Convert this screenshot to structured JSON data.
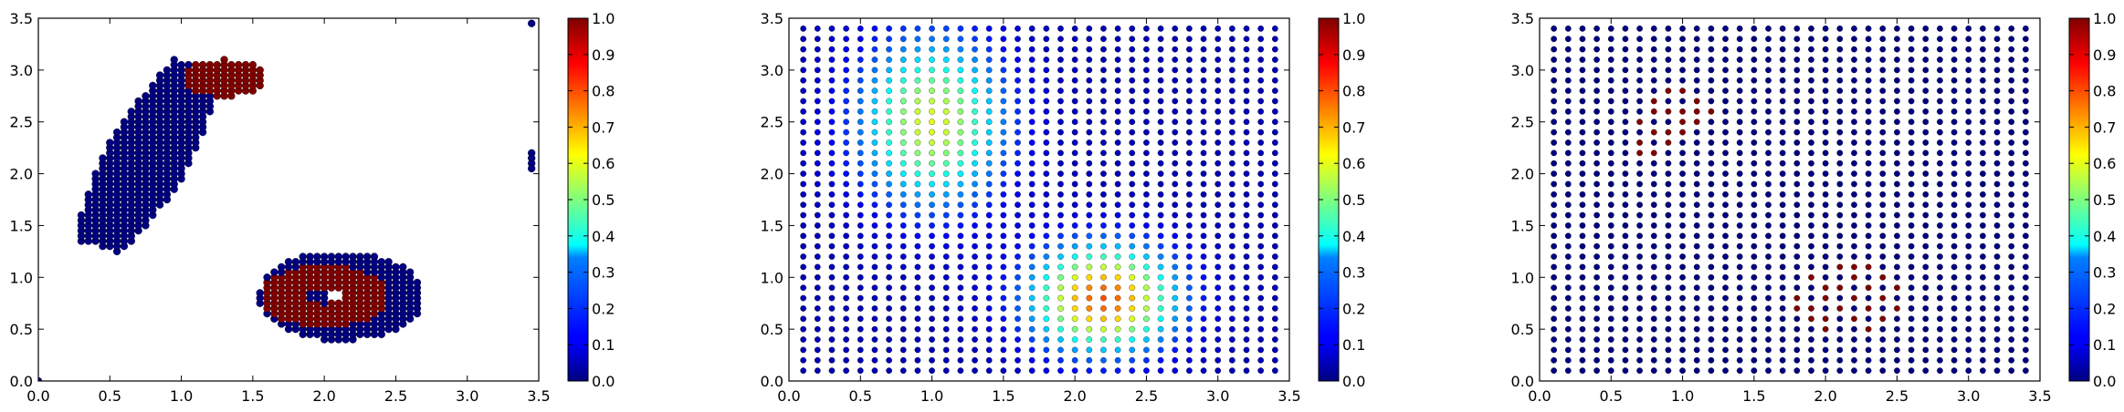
{
  "chart_data": [
    {
      "type": "scatter",
      "title": "",
      "xlabel": "",
      "ylabel": "",
      "xlim": [
        0.0,
        3.5
      ],
      "ylim": [
        0.0,
        3.5
      ],
      "xticks": [
        "0.0",
        "0.5",
        "1.0",
        "1.5",
        "2.0",
        "2.5",
        "3.0",
        "3.5"
      ],
      "yticks": [
        "0.0",
        "0.5",
        "1.0",
        "1.5",
        "2.0",
        "2.5",
        "3.0",
        "3.5"
      ],
      "colormap": "jet",
      "colorbar": {
        "range": [
          0.0,
          1.0
        ],
        "ticks": [
          "0.0",
          "0.1",
          "0.2",
          "0.3",
          "0.4",
          "0.5",
          "0.6",
          "0.7",
          "0.8",
          "0.9",
          "1.0"
        ]
      },
      "grid": false,
      "point_spacing": 0.05,
      "description_of_points": "dense point clouds: elongated diagonal blob near x 0.4-1.5, y 1.2-3.1 (mostly value 0 with value-1 cap at upper right); ring shape near x 1.5-2.7, y 0.35-1.3 (inner value 1, outer value 0); outliers at x 3.45",
      "regions": [
        {
          "value": 0,
          "shape": "band",
          "x0": 0.42,
          "y0": 1.3,
          "x1": 1.12,
          "y1": 3.05,
          "halfwidth": 0.24
        },
        {
          "value": 1,
          "shape": "ellipse",
          "cx": 1.3,
          "cy": 2.92,
          "rx": 0.3,
          "ry": 0.18
        },
        {
          "value": 0,
          "shape": "ring",
          "cx": 2.12,
          "cy": 0.82,
          "rx": 0.58,
          "ry": 0.43,
          "inner_rx": 0.12,
          "inner_ry": 0.07
        },
        {
          "value": 1,
          "shape": "ring",
          "cx": 2.0,
          "cy": 0.82,
          "rx": 0.45,
          "ry": 0.3,
          "inner_rx": 0.12,
          "inner_ry": 0.07
        }
      ],
      "points": [
        {
          "x": 3.45,
          "y": 3.45,
          "value": 0
        },
        {
          "x": 3.45,
          "y": 2.2,
          "value": 0
        },
        {
          "x": 3.45,
          "y": 2.15,
          "value": 0
        },
        {
          "x": 3.45,
          "y": 2.1,
          "value": 0
        },
        {
          "x": 3.45,
          "y": 2.05,
          "value": 0
        },
        {
          "x": 0.0,
          "y": 0.0,
          "value": 0
        }
      ]
    },
    {
      "type": "scatter",
      "title": "",
      "xlabel": "",
      "ylabel": "",
      "xlim": [
        0.0,
        3.5
      ],
      "ylim": [
        0.0,
        3.5
      ],
      "xticks": [
        "0.0",
        "0.5",
        "1.0",
        "1.5",
        "2.0",
        "2.5",
        "3.0",
        "3.5"
      ],
      "yticks": [
        "0.0",
        "0.5",
        "1.0",
        "1.5",
        "2.0",
        "2.5",
        "3.0",
        "3.5"
      ],
      "colormap": "jet",
      "colorbar": {
        "range": [
          0.0,
          1.0
        ],
        "ticks": [
          "0.0",
          "0.1",
          "0.2",
          "0.3",
          "0.4",
          "0.5",
          "0.6",
          "0.7",
          "0.8",
          "0.9",
          "1.0"
        ]
      },
      "grid": false,
      "grid_points": {
        "x_start": 0.1,
        "x_end": 3.4,
        "x_step": 0.1,
        "y_start": 0.1,
        "y_end": 3.4,
        "y_step": 0.1
      },
      "field": [
        {
          "cx": 1.0,
          "cy": 2.5,
          "sx": 0.35,
          "sy": 0.55,
          "amplitude": 0.55
        },
        {
          "cx": 2.2,
          "cy": 0.8,
          "sx": 0.35,
          "sy": 0.35,
          "amplitude": 0.75
        }
      ],
      "base_value": 0.05
    },
    {
      "type": "scatter",
      "title": "",
      "xlabel": "",
      "ylabel": "",
      "xlim": [
        0.0,
        3.5
      ],
      "ylim": [
        0.0,
        3.5
      ],
      "xticks": [
        "0.0",
        "0.5",
        "1.0",
        "1.5",
        "2.0",
        "2.5",
        "3.0",
        "3.5"
      ],
      "yticks": [
        "0.0",
        "0.5",
        "1.0",
        "1.5",
        "2.0",
        "2.5",
        "3.0",
        "3.5"
      ],
      "colormap": "jet",
      "colorbar": {
        "range": [
          0.0,
          1.0
        ],
        "ticks": [
          "0.0",
          "0.1",
          "0.2",
          "0.3",
          "0.4",
          "0.5",
          "0.6",
          "0.7",
          "0.8",
          "0.9",
          "1.0"
        ]
      },
      "grid": false,
      "grid_points": {
        "x_start": 0.1,
        "x_end": 3.4,
        "x_step": 0.1,
        "y_start": 0.1,
        "y_end": 3.4,
        "y_step": 0.1
      },
      "base_value": 0.0,
      "high_points": [
        {
          "x": 0.9,
          "y": 2.8
        },
        {
          "x": 1.0,
          "y": 2.8
        },
        {
          "x": 0.8,
          "y": 2.7
        },
        {
          "x": 1.1,
          "y": 2.7
        },
        {
          "x": 0.8,
          "y": 2.6
        },
        {
          "x": 0.9,
          "y": 2.6
        },
        {
          "x": 1.0,
          "y": 2.6
        },
        {
          "x": 1.1,
          "y": 2.6
        },
        {
          "x": 1.2,
          "y": 2.6
        },
        {
          "x": 0.7,
          "y": 2.5
        },
        {
          "x": 1.0,
          "y": 2.5
        },
        {
          "x": 1.1,
          "y": 2.5
        },
        {
          "x": 0.8,
          "y": 2.4
        },
        {
          "x": 0.9,
          "y": 2.4
        },
        {
          "x": 1.0,
          "y": 2.4
        },
        {
          "x": 0.7,
          "y": 2.3
        },
        {
          "x": 0.9,
          "y": 2.3
        },
        {
          "x": 0.7,
          "y": 2.2
        },
        {
          "x": 0.8,
          "y": 2.2
        },
        {
          "x": 2.1,
          "y": 1.1
        },
        {
          "x": 2.2,
          "y": 1.1
        },
        {
          "x": 2.3,
          "y": 1.1
        },
        {
          "x": 1.9,
          "y": 1.0
        },
        {
          "x": 2.2,
          "y": 1.0
        },
        {
          "x": 2.4,
          "y": 1.0
        },
        {
          "x": 2.0,
          "y": 0.9
        },
        {
          "x": 2.1,
          "y": 0.9
        },
        {
          "x": 2.3,
          "y": 0.9
        },
        {
          "x": 2.5,
          "y": 0.9
        },
        {
          "x": 1.8,
          "y": 0.8
        },
        {
          "x": 2.0,
          "y": 0.8
        },
        {
          "x": 2.2,
          "y": 0.8
        },
        {
          "x": 2.4,
          "y": 0.8
        },
        {
          "x": 1.8,
          "y": 0.7
        },
        {
          "x": 1.9,
          "y": 0.7
        },
        {
          "x": 2.1,
          "y": 0.7
        },
        {
          "x": 2.3,
          "y": 0.7
        },
        {
          "x": 2.5,
          "y": 0.7
        },
        {
          "x": 1.9,
          "y": 0.6
        },
        {
          "x": 2.0,
          "y": 0.6
        },
        {
          "x": 2.2,
          "y": 0.6
        },
        {
          "x": 2.4,
          "y": 0.6
        },
        {
          "x": 2.0,
          "y": 0.5
        },
        {
          "x": 2.3,
          "y": 0.5
        }
      ]
    }
  ]
}
